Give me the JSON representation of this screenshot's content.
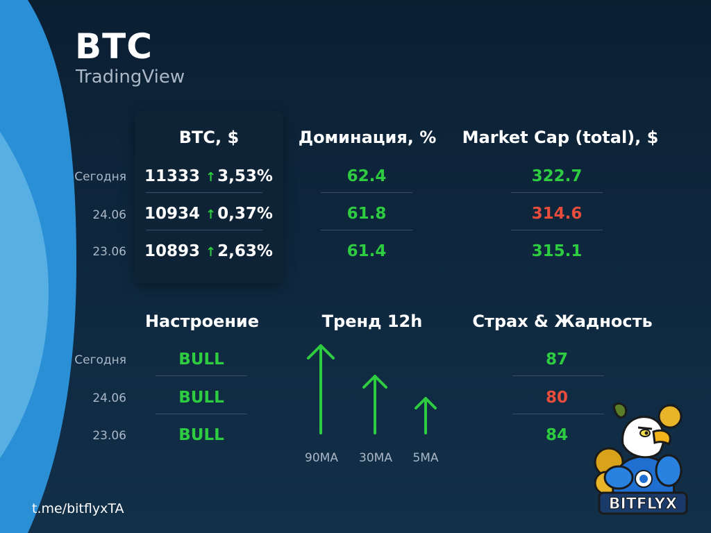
{
  "header": {
    "title": "BTC",
    "subtitle": "TradingView"
  },
  "top_table": {
    "headers": {
      "btc": "BTC, $",
      "dominance": "Доминация, %",
      "market_cap": "Market Cap (total), $"
    },
    "rows": [
      {
        "label": "Сегодня",
        "btc_price": "11333",
        "btc_change": "3,53%",
        "dominance": "62.4",
        "dominance_color": "green",
        "market_cap": "322.7",
        "market_cap_color": "green"
      },
      {
        "label": "24.06",
        "btc_price": "10934",
        "btc_change": "0,37%",
        "dominance": "61.8",
        "dominance_color": "green",
        "market_cap": "314.6",
        "market_cap_color": "red"
      },
      {
        "label": "23.06",
        "btc_price": "10893",
        "btc_change": "2,63%",
        "dominance": "61.4",
        "dominance_color": "green",
        "market_cap": "315.1",
        "market_cap_color": "green"
      }
    ]
  },
  "bottom_table": {
    "headers": {
      "sentiment": "Настроение",
      "trend": "Тренд 12h",
      "fear_greed": "Страх & Жадность"
    },
    "rows": [
      {
        "label": "Сегодня",
        "sentiment": "BULL",
        "fear_greed": "87",
        "fear_greed_color": "green"
      },
      {
        "label": "24.06",
        "sentiment": "BULL",
        "fear_greed": "80",
        "fear_greed_color": "red"
      },
      {
        "label": "23.06",
        "sentiment": "BULL",
        "fear_greed": "84",
        "fear_greed_color": "green"
      }
    ],
    "trend_arrows": [
      {
        "label": "90MA",
        "direction": "up"
      },
      {
        "label": "30MA",
        "direction": "up"
      },
      {
        "label": "5MA",
        "direction": "up"
      }
    ]
  },
  "footer": {
    "link": "t.me/bitflyxTA"
  },
  "logo": {
    "text": "BITFLYX"
  },
  "colors": {
    "green": "#2ecc40",
    "red": "#e74c3c",
    "accent_blue": "#2b8fd6"
  }
}
